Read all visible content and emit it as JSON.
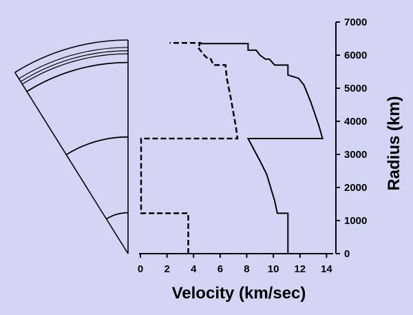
{
  "page": {
    "background": "#d4d4f5"
  },
  "chart_data": {
    "type": "line",
    "title": "",
    "xlabel": "Velocity (km/sec)",
    "ylabel": "Radius (km)",
    "xlim": [
      0,
      14.5
    ],
    "ylim": [
      0,
      7000
    ],
    "xticks": [
      0,
      2,
      4,
      6,
      8,
      10,
      12,
      14
    ],
    "yticks": [
      0,
      1000,
      2000,
      3000,
      4000,
      5000,
      6000,
      7000
    ],
    "y_axis_side": "right",
    "grid": false,
    "legend": "none",
    "series": [
      {
        "style": "solid",
        "color": "#000000",
        "points": [
          [
            11.1,
            0
          ],
          [
            11.1,
            1220
          ],
          [
            10.3,
            1220
          ],
          [
            10.1,
            1600
          ],
          [
            9.5,
            2400
          ],
          [
            9.0,
            2800
          ],
          [
            8.1,
            3480
          ],
          [
            13.7,
            3480
          ],
          [
            13.4,
            3900
          ],
          [
            12.8,
            4600
          ],
          [
            12.3,
            5100
          ],
          [
            11.9,
            5300
          ],
          [
            11.1,
            5400
          ],
          [
            11.1,
            5700
          ],
          [
            10.1,
            5700
          ],
          [
            9.7,
            5880
          ],
          [
            9.4,
            5880
          ],
          [
            9.0,
            6000
          ],
          [
            8.7,
            6150
          ],
          [
            8.1,
            6150
          ],
          [
            8.1,
            6350
          ],
          [
            4.5,
            6350
          ]
        ]
      },
      {
        "style": "dashed",
        "color": "#000000",
        "points": [
          [
            3.6,
            0
          ],
          [
            3.6,
            1220
          ],
          [
            0.05,
            1220
          ],
          [
            0.05,
            3480
          ],
          [
            7.3,
            3480
          ],
          [
            7.2,
            3800
          ],
          [
            6.8,
            4700
          ],
          [
            6.5,
            5300
          ],
          [
            6.4,
            5700
          ],
          [
            5.5,
            5700
          ],
          [
            5.3,
            5880
          ],
          [
            5.1,
            5880
          ],
          [
            4.8,
            6000
          ],
          [
            4.5,
            6150
          ],
          [
            4.3,
            6250
          ],
          [
            4.4,
            6280
          ],
          [
            4.5,
            6370
          ],
          [
            2.2,
            6370
          ]
        ]
      }
    ],
    "cross_section": {
      "type": "earth-wedge",
      "max_radius": 6371,
      "angle_degrees": 32,
      "boundary_radii": [
        1220,
        3480,
        5700,
        5960,
        6050,
        6150
      ]
    }
  }
}
